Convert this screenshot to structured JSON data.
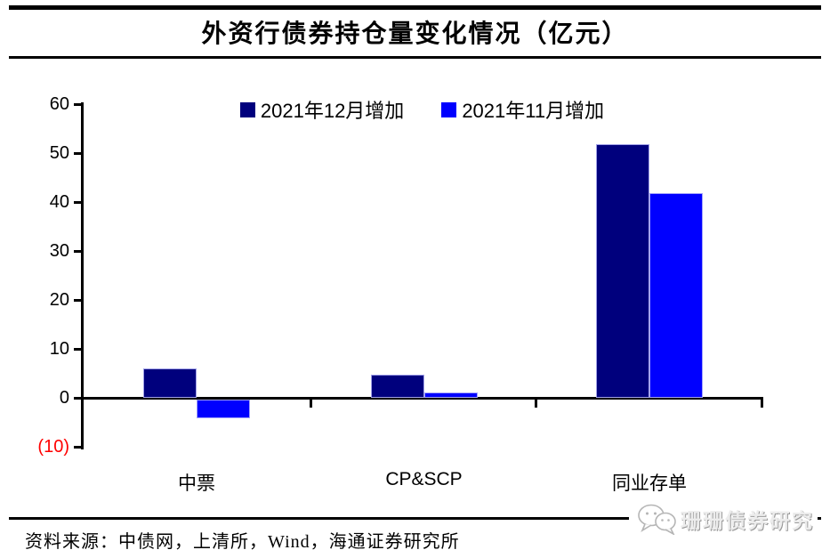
{
  "title": "外资行债券持仓量变化情况（亿元）",
  "legend": {
    "items": [
      {
        "label": "2021年12月增加",
        "color": "#00007d"
      },
      {
        "label": "2021年11月增加",
        "color": "#0000ff"
      }
    ]
  },
  "source": {
    "label": "资料来源：",
    "text": "中债网，上清所，Wind，海通证券研究所"
  },
  "watermark": {
    "text": "珊珊债券研究",
    "icon": "chat-bubbles-icon"
  },
  "chart_data": {
    "type": "bar",
    "title": "外资行债券持仓量变化情况（亿元）",
    "categories": [
      "中票",
      "CP&SCP",
      "同业存单"
    ],
    "series": [
      {
        "name": "2021年12月增加",
        "color": "#00007d",
        "values": [
          6.0,
          4.7,
          51.8
        ]
      },
      {
        "name": "2021年11月增加",
        "color": "#0000ff",
        "values": [
          -3.8,
          1.1,
          41.8
        ]
      }
    ],
    "xlabel": "",
    "ylabel": "",
    "ylim": [
      -10,
      60
    ],
    "ytick_values": [
      60,
      50,
      40,
      30,
      20,
      10,
      0,
      -10
    ],
    "ytick_labels": [
      "60",
      "50",
      "40",
      "30",
      "20",
      "10",
      "0",
      "(10)"
    ],
    "negative_tick_color": "#ff0000",
    "grid": false,
    "legend_position": "top-center",
    "axis_color": "#000000"
  }
}
